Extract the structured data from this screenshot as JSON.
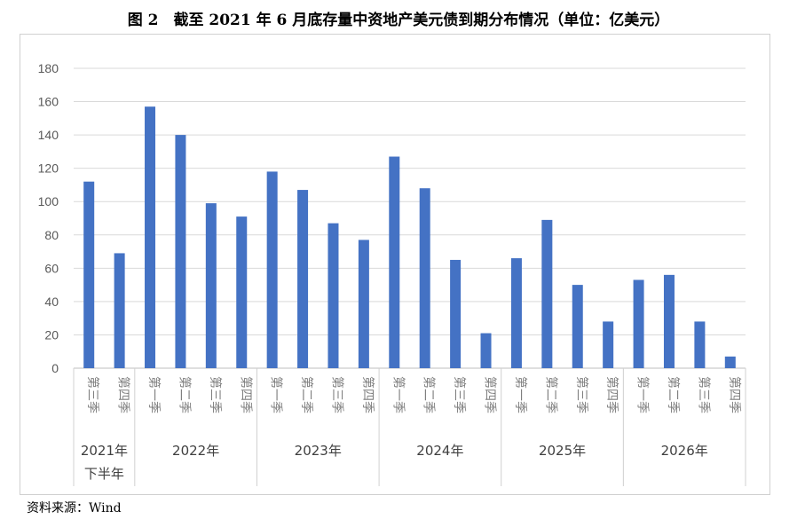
{
  "title": "图 2　截至 2021 年 6 月底存量中资地产美元债到期分布情况（单位：亿美元）",
  "source": "资料来源：Wind",
  "chart_data": {
    "type": "bar",
    "title": "图 2　截至 2021 年 6 月底存量中资地产美元债到期分布情况（单位：亿美元）",
    "ylim": [
      0,
      180
    ],
    "yticks": [
      0,
      20,
      40,
      60,
      80,
      100,
      120,
      140,
      160,
      180
    ],
    "grid": true,
    "bar_color": "#4472C4",
    "groups": [
      {
        "label": "2021年下半年",
        "label_lines": [
          "2021年",
          "下半年"
        ],
        "categories": [
          "第三季",
          "第四季"
        ]
      },
      {
        "label": "2022年",
        "label_lines": [
          "2022年"
        ],
        "categories": [
          "第一季",
          "第二季",
          "第三季",
          "第四季"
        ]
      },
      {
        "label": "2023年",
        "label_lines": [
          "2023年"
        ],
        "categories": [
          "第一季",
          "第二季",
          "第三季",
          "第四季"
        ]
      },
      {
        "label": "2024年",
        "label_lines": [
          "2024年"
        ],
        "categories": [
          "第一季",
          "第二季",
          "第三季",
          "第四季"
        ]
      },
      {
        "label": "2025年",
        "label_lines": [
          "2025年"
        ],
        "categories": [
          "第一季",
          "第二季",
          "第三季",
          "第四季"
        ]
      },
      {
        "label": "2026年",
        "label_lines": [
          "2026年"
        ],
        "categories": [
          "第一季",
          "第二季",
          "第三季",
          "第四季"
        ]
      }
    ],
    "values": [
      112,
      69,
      157,
      140,
      99,
      91,
      118,
      107,
      87,
      77,
      127,
      108,
      65,
      21,
      66,
      89,
      50,
      28,
      53,
      56,
      28,
      7
    ]
  }
}
